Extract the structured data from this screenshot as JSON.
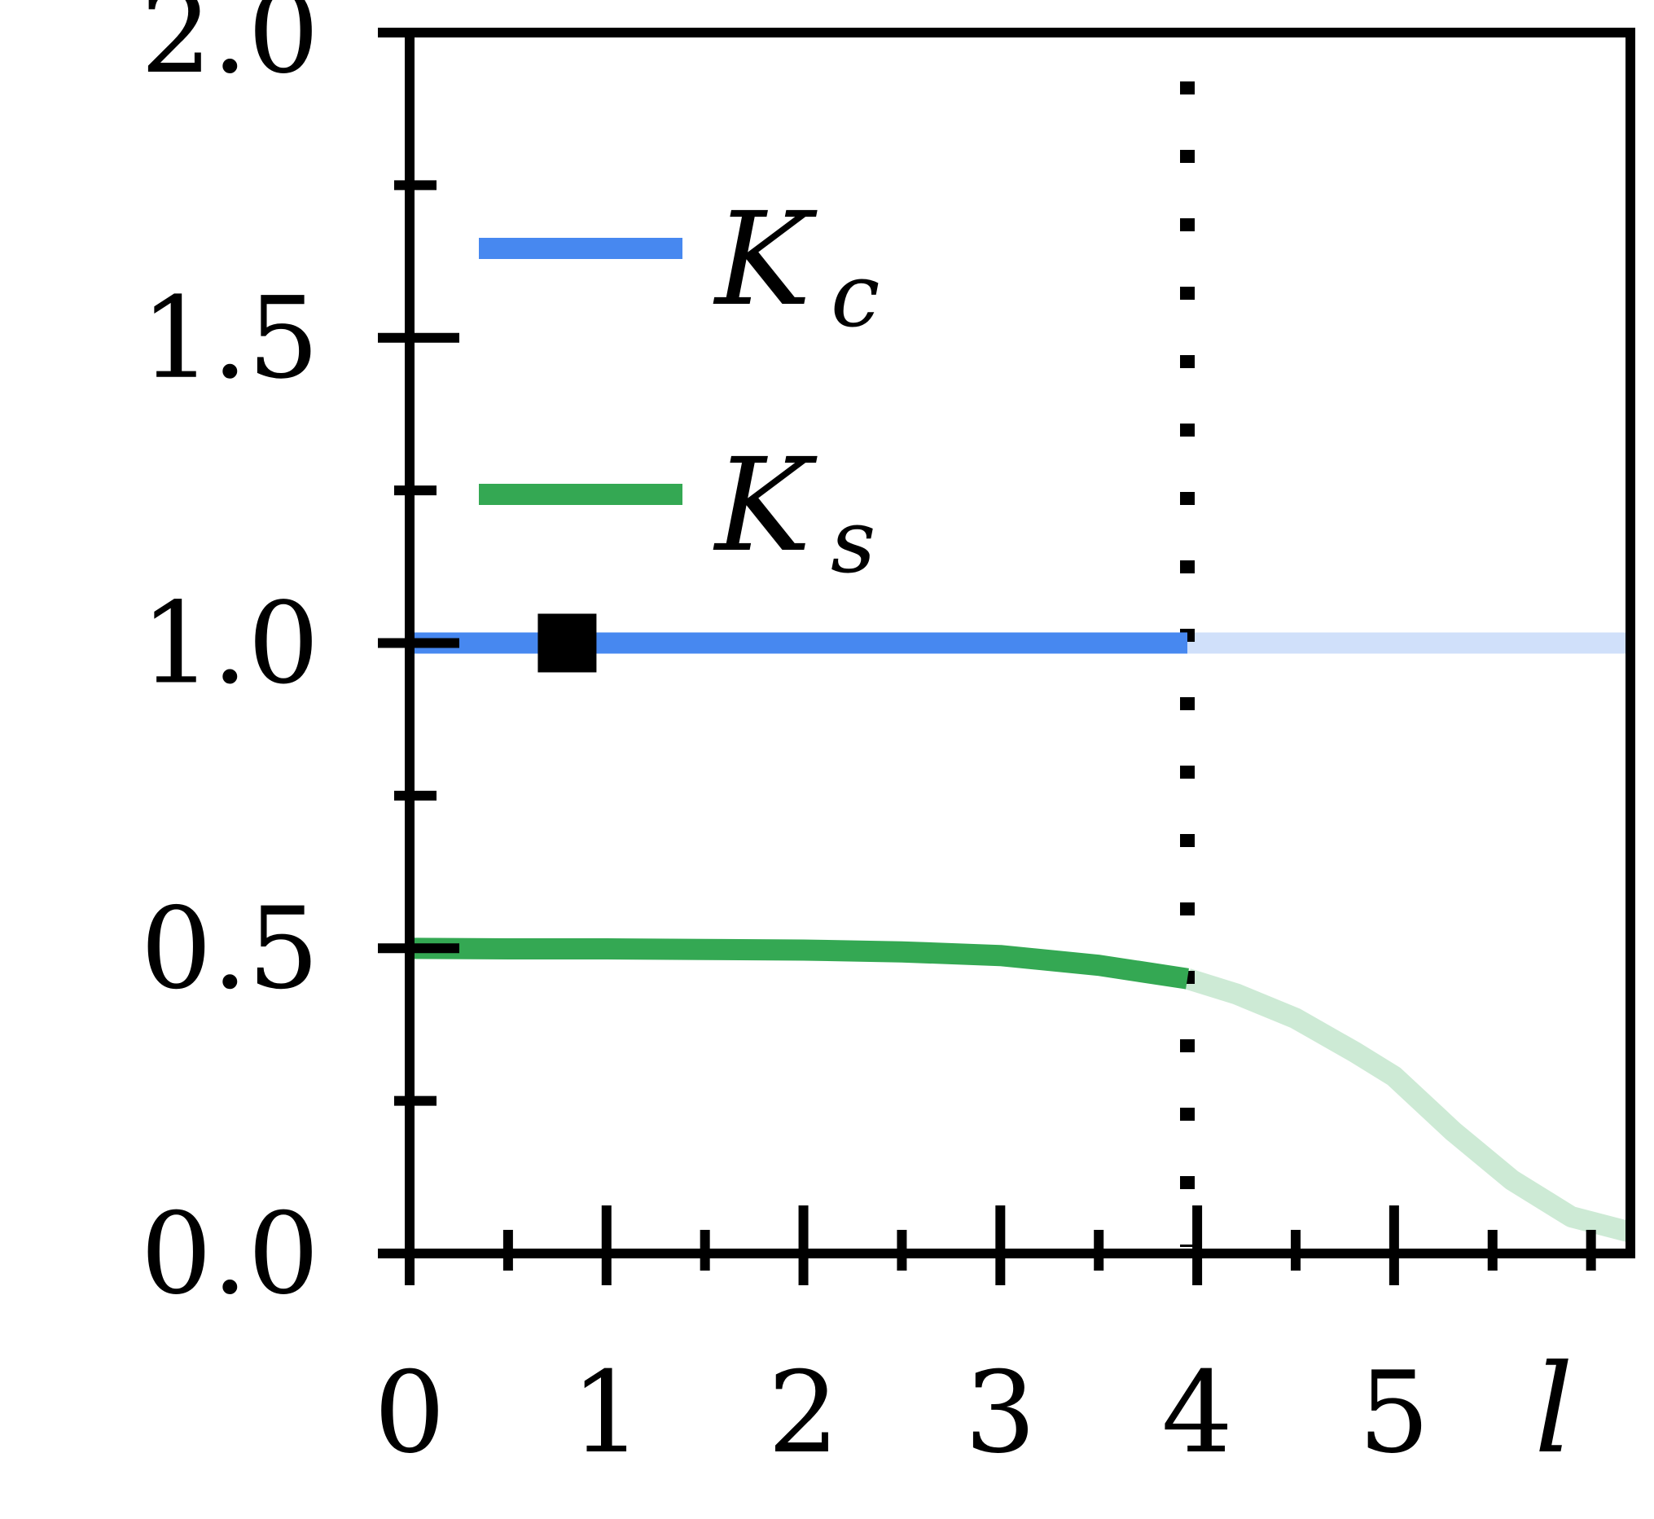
{
  "chart_data": {
    "type": "line",
    "title": "",
    "xlabel": "l",
    "ylabel": "",
    "xlim": [
      0,
      6.2
    ],
    "ylim": [
      0,
      2.0
    ],
    "x_ticks": [
      {
        "value": 0,
        "label": "0"
      },
      {
        "value": 1,
        "label": "1"
      },
      {
        "value": 2,
        "label": "2"
      },
      {
        "value": 3,
        "label": "3"
      },
      {
        "value": 4,
        "label": "4"
      },
      {
        "value": 5,
        "label": "5"
      }
    ],
    "x_minor_ticks": [
      0.5,
      1.5,
      2.5,
      3.5,
      4.5,
      5.5,
      6.0
    ],
    "y_ticks": [
      {
        "value": 0.0,
        "label": "0.0"
      },
      {
        "value": 0.5,
        "label": "0.5"
      },
      {
        "value": 1.0,
        "label": "1.0"
      },
      {
        "value": 1.5,
        "label": "1.5"
      },
      {
        "value": 2.0,
        "label": "2.0"
      }
    ],
    "y_minor_ticks": [
      0.25,
      0.75,
      1.25,
      1.75
    ],
    "grid": false,
    "legend_position": "top-left",
    "cutoff_x": 3.95,
    "marker": {
      "x": 0.8,
      "y": 1.0,
      "shape": "square",
      "color": "#000000"
    },
    "series": [
      {
        "name": "K_c",
        "legend_main": "K",
        "legend_sub": "c",
        "color": "#4788f0",
        "faded_color": "#d0e0fa",
        "x": [
          0,
          1,
          2,
          3,
          3.95,
          4.5,
          5,
          5.5,
          6.2
        ],
        "y": [
          1.0,
          1.0,
          1.0,
          1.0,
          1.0,
          1.0,
          1.0,
          1.0,
          1.0
        ]
      },
      {
        "name": "K_s",
        "legend_main": "K",
        "legend_sub": "s",
        "color": "#34a853",
        "faded_color": "#cdead5",
        "x": [
          0,
          0.5,
          1,
          1.5,
          2,
          2.5,
          3,
          3.5,
          3.95,
          4.2,
          4.5,
          4.8,
          5,
          5.3,
          5.6,
          5.9,
          6.2
        ],
        "y": [
          0.5,
          0.499,
          0.499,
          0.498,
          0.497,
          0.494,
          0.488,
          0.472,
          0.45,
          0.425,
          0.385,
          0.33,
          0.29,
          0.2,
          0.12,
          0.06,
          0.035
        ]
      }
    ]
  }
}
